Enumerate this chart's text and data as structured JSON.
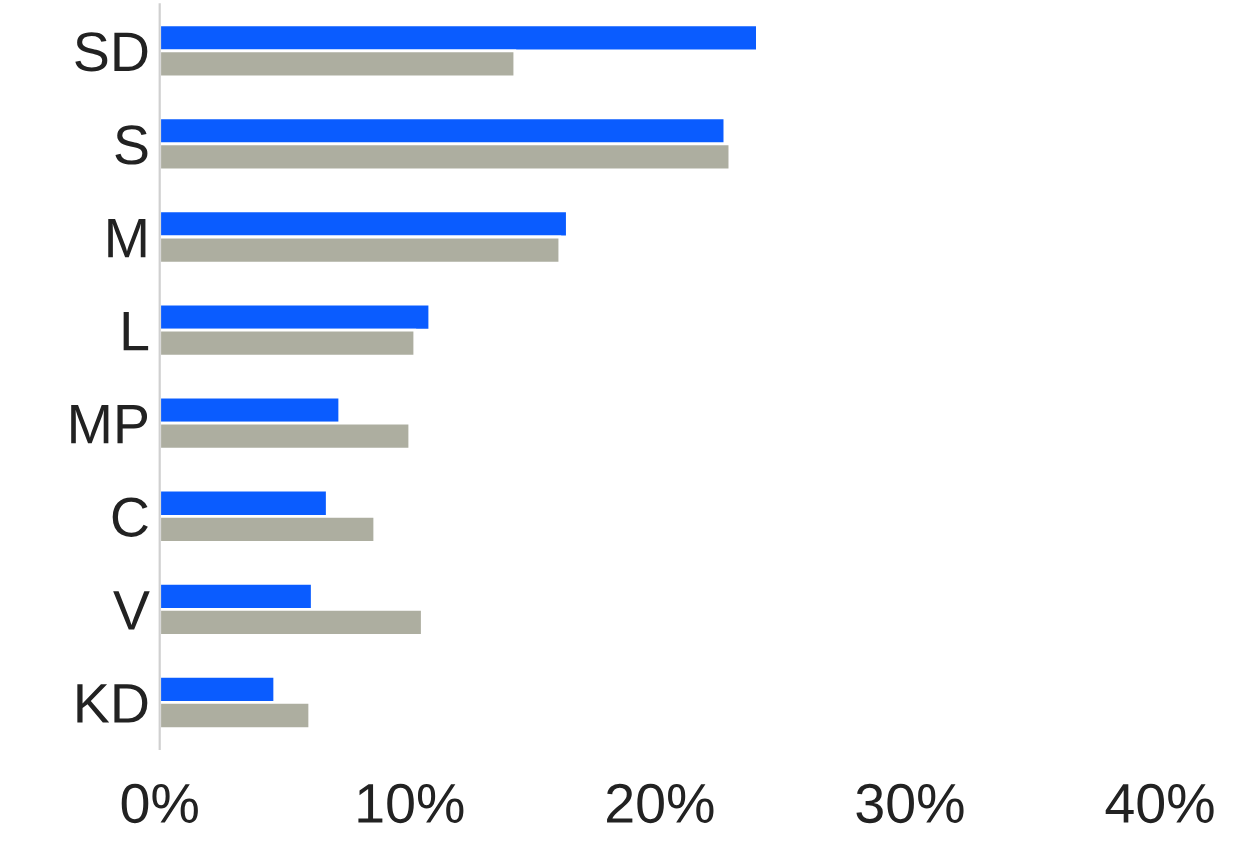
{
  "chart_data": {
    "type": "bar",
    "orientation": "horizontal",
    "categories": [
      "SD",
      "S",
      "M",
      "L",
      "MP",
      "C",
      "V",
      "KD"
    ],
    "series": [
      {
        "color": "#0a5cff",
        "values": [
          23.9,
          22.6,
          16.3,
          10.8,
          7.2,
          6.7,
          6.1,
          4.6
        ]
      },
      {
        "color": "#adaea0",
        "values": [
          14.2,
          22.8,
          16.0,
          10.2,
          10.0,
          8.6,
          10.5,
          6.0
        ]
      }
    ],
    "xlim": [
      0,
      40
    ],
    "xticks": [
      {
        "value": 0,
        "label": "0%"
      },
      {
        "value": 10,
        "label": "10%"
      },
      {
        "value": 20,
        "label": "20%"
      },
      {
        "value": 30,
        "label": "30%"
      },
      {
        "value": 40,
        "label": "40%"
      }
    ],
    "grid": false,
    "legend": false
  }
}
